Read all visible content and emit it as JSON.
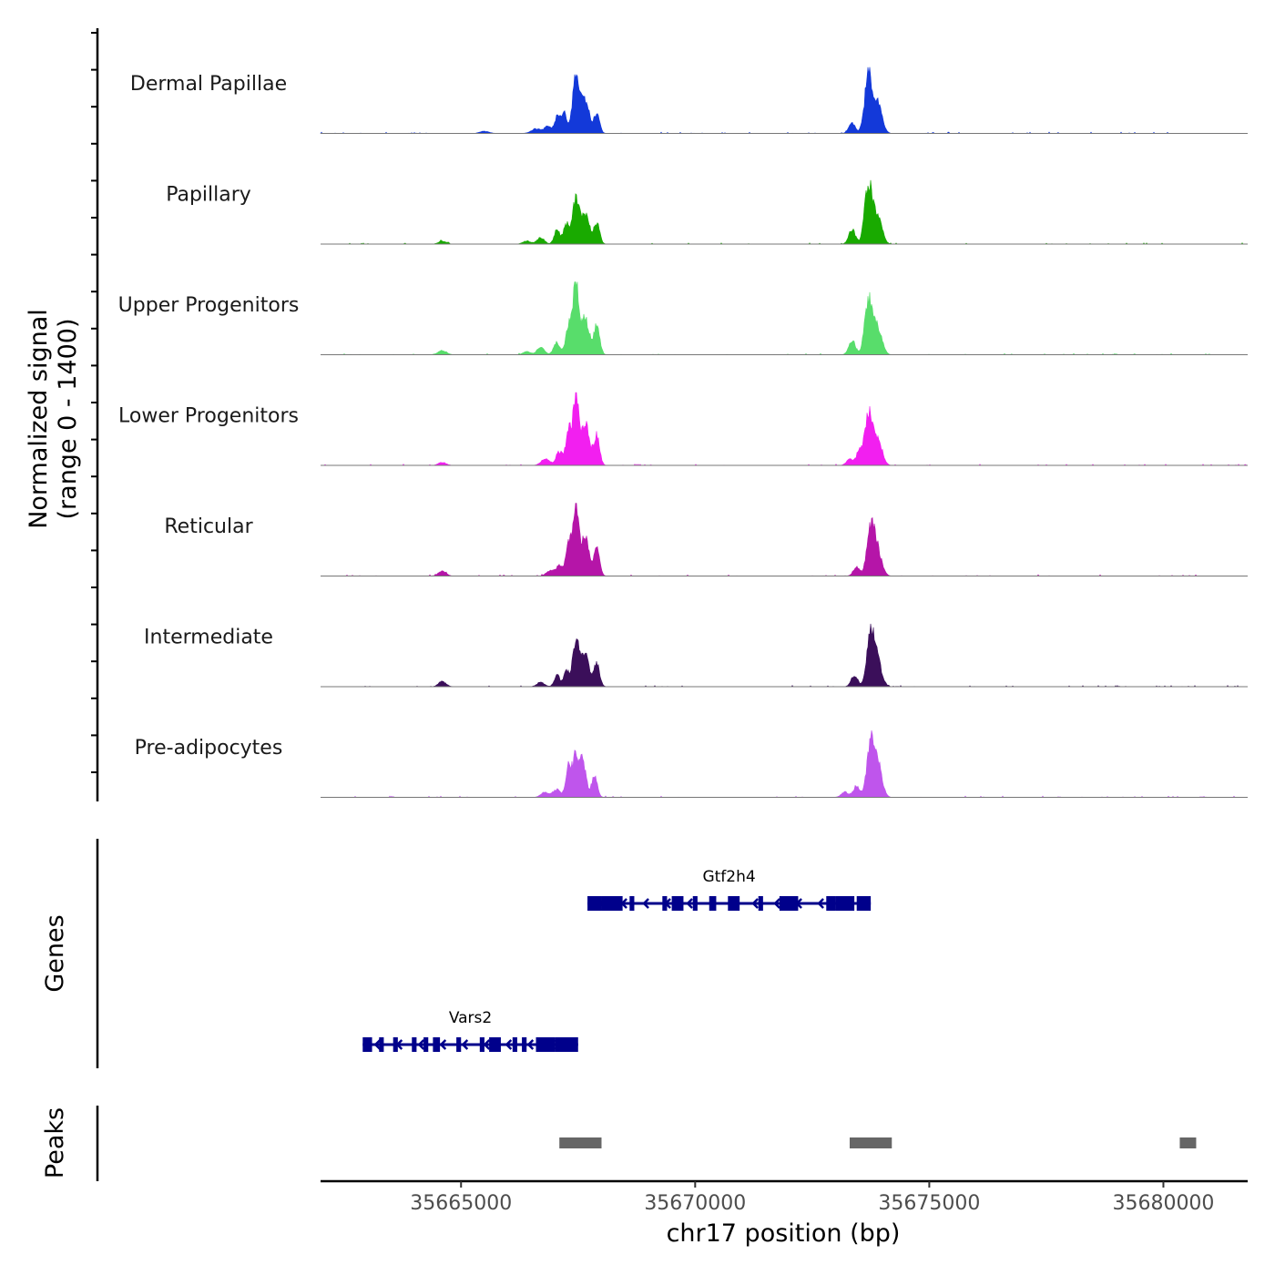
{
  "chart_data": {
    "type": "area",
    "xlabel": "chr17 position (bp)",
    "ylabel_signal": "Normalized signal",
    "ylabel_signal_range": "(range 0 - 1400)",
    "ylabel_genes": "Genes",
    "ylabel_peaks": "Peaks",
    "chromosome": "chr17",
    "xlim": [
      35662000,
      35681800
    ],
    "ylim": [
      0,
      1400
    ],
    "x_ticks": [
      35665000,
      35670000,
      35675000,
      35680000
    ],
    "x_tick_labels": [
      "35665000",
      "35670000",
      "35675000",
      "35680000"
    ],
    "tracks": [
      {
        "name": "Dermal Papillae",
        "color": "#1339d9",
        "peaks": [
          {
            "x": 35665500,
            "h": 40,
            "w": 100
          },
          {
            "x": 35666600,
            "h": 90,
            "w": 100
          },
          {
            "x": 35666850,
            "h": 150,
            "w": 70
          },
          {
            "x": 35667050,
            "h": 300,
            "w": 60
          },
          {
            "x": 35667200,
            "h": 380,
            "w": 60
          },
          {
            "x": 35667450,
            "h": 1050,
            "w": 70
          },
          {
            "x": 35667650,
            "h": 650,
            "w": 90
          },
          {
            "x": 35667900,
            "h": 350,
            "w": 60
          },
          {
            "x": 35673350,
            "h": 200,
            "w": 70
          },
          {
            "x": 35673700,
            "h": 1100,
            "w": 80
          },
          {
            "x": 35673900,
            "h": 550,
            "w": 90
          }
        ]
      },
      {
        "name": "Papillary",
        "color": "#19aa00",
        "peaks": [
          {
            "x": 35664600,
            "h": 60,
            "w": 80
          },
          {
            "x": 35666400,
            "h": 60,
            "w": 80
          },
          {
            "x": 35666700,
            "h": 120,
            "w": 80
          },
          {
            "x": 35667050,
            "h": 270,
            "w": 60
          },
          {
            "x": 35667250,
            "h": 380,
            "w": 60
          },
          {
            "x": 35667450,
            "h": 820,
            "w": 70
          },
          {
            "x": 35667650,
            "h": 580,
            "w": 90
          },
          {
            "x": 35667900,
            "h": 400,
            "w": 60
          },
          {
            "x": 35673350,
            "h": 280,
            "w": 70
          },
          {
            "x": 35673700,
            "h": 1150,
            "w": 80
          },
          {
            "x": 35673900,
            "h": 520,
            "w": 90
          }
        ]
      },
      {
        "name": "Upper Progenitors",
        "color": "#58dd6b",
        "peaks": [
          {
            "x": 35664600,
            "h": 80,
            "w": 90
          },
          {
            "x": 35666400,
            "h": 60,
            "w": 80
          },
          {
            "x": 35666700,
            "h": 140,
            "w": 80
          },
          {
            "x": 35667050,
            "h": 230,
            "w": 70
          },
          {
            "x": 35667300,
            "h": 550,
            "w": 60
          },
          {
            "x": 35667450,
            "h": 1380,
            "w": 60
          },
          {
            "x": 35667650,
            "h": 700,
            "w": 90
          },
          {
            "x": 35667900,
            "h": 560,
            "w": 60
          },
          {
            "x": 35673350,
            "h": 280,
            "w": 70
          },
          {
            "x": 35673700,
            "h": 1050,
            "w": 80
          },
          {
            "x": 35673900,
            "h": 520,
            "w": 90
          }
        ]
      },
      {
        "name": "Lower Progenitors",
        "color": "#f21ff0",
        "peaks": [
          {
            "x": 35664600,
            "h": 60,
            "w": 80
          },
          {
            "x": 35666800,
            "h": 120,
            "w": 90
          },
          {
            "x": 35667100,
            "h": 270,
            "w": 70
          },
          {
            "x": 35667300,
            "h": 650,
            "w": 60
          },
          {
            "x": 35667450,
            "h": 1300,
            "w": 60
          },
          {
            "x": 35667650,
            "h": 820,
            "w": 90
          },
          {
            "x": 35667900,
            "h": 580,
            "w": 60
          },
          {
            "x": 35673300,
            "h": 120,
            "w": 70
          },
          {
            "x": 35673500,
            "h": 250,
            "w": 60
          },
          {
            "x": 35673700,
            "h": 1000,
            "w": 80
          },
          {
            "x": 35673900,
            "h": 500,
            "w": 90
          }
        ]
      },
      {
        "name": "Reticular",
        "color": "#b515a8",
        "peaks": [
          {
            "x": 35664600,
            "h": 100,
            "w": 80
          },
          {
            "x": 35666900,
            "h": 100,
            "w": 80
          },
          {
            "x": 35667100,
            "h": 200,
            "w": 70
          },
          {
            "x": 35667300,
            "h": 600,
            "w": 60
          },
          {
            "x": 35667450,
            "h": 1250,
            "w": 60
          },
          {
            "x": 35667650,
            "h": 720,
            "w": 90
          },
          {
            "x": 35667900,
            "h": 500,
            "w": 60
          },
          {
            "x": 35673450,
            "h": 180,
            "w": 70
          },
          {
            "x": 35673750,
            "h": 900,
            "w": 80
          },
          {
            "x": 35673900,
            "h": 450,
            "w": 90
          }
        ]
      },
      {
        "name": "Intermediate",
        "color": "#3b0f5a",
        "peaks": [
          {
            "x": 35664600,
            "h": 100,
            "w": 80
          },
          {
            "x": 35666700,
            "h": 80,
            "w": 80
          },
          {
            "x": 35667050,
            "h": 220,
            "w": 60
          },
          {
            "x": 35667250,
            "h": 280,
            "w": 60
          },
          {
            "x": 35667450,
            "h": 850,
            "w": 70
          },
          {
            "x": 35667650,
            "h": 600,
            "w": 90
          },
          {
            "x": 35667900,
            "h": 450,
            "w": 60
          },
          {
            "x": 35673400,
            "h": 220,
            "w": 70
          },
          {
            "x": 35673750,
            "h": 1000,
            "w": 80
          },
          {
            "x": 35673900,
            "h": 450,
            "w": 90
          }
        ]
      },
      {
        "name": "Pre-adipocytes",
        "color": "#bf55ec",
        "peaks": [
          {
            "x": 35666800,
            "h": 100,
            "w": 90
          },
          {
            "x": 35667050,
            "h": 150,
            "w": 80
          },
          {
            "x": 35667300,
            "h": 600,
            "w": 60
          },
          {
            "x": 35667450,
            "h": 750,
            "w": 60
          },
          {
            "x": 35667600,
            "h": 700,
            "w": 70
          },
          {
            "x": 35667850,
            "h": 420,
            "w": 60
          },
          {
            "x": 35673200,
            "h": 100,
            "w": 80
          },
          {
            "x": 35673450,
            "h": 220,
            "w": 70
          },
          {
            "x": 35673750,
            "h": 1050,
            "w": 80
          },
          {
            "x": 35673900,
            "h": 600,
            "w": 90
          }
        ]
      }
    ],
    "genes": [
      {
        "name": "Vars2",
        "strand": "-",
        "start": 35662900,
        "end": 35667500,
        "exons": [
          [
            35662900,
            35663100
          ],
          [
            35663250,
            35663350
          ],
          [
            35663550,
            35663650
          ],
          [
            35663950,
            35664050
          ],
          [
            35664200,
            35664300
          ],
          [
            35664400,
            35664550
          ],
          [
            35664900,
            35665000
          ],
          [
            35665400,
            35665500
          ],
          [
            35665600,
            35665850
          ],
          [
            35666100,
            35666200
          ],
          [
            35666300,
            35666400
          ],
          [
            35666600,
            35667000
          ],
          [
            35667000,
            35667500
          ]
        ]
      },
      {
        "name": "Gtf2h4",
        "strand": "-",
        "start": 35667700,
        "end": 35673750,
        "exons": [
          [
            35667700,
            35668000
          ],
          [
            35668000,
            35668450
          ],
          [
            35668600,
            35668700
          ],
          [
            35669300,
            35669400
          ],
          [
            35669500,
            35669750
          ],
          [
            35669950,
            35670050
          ],
          [
            35670300,
            35670450
          ],
          [
            35670700,
            35670950
          ],
          [
            35671350,
            35671450
          ],
          [
            35671800,
            35672200
          ],
          [
            35672800,
            35673000
          ],
          [
            35673000,
            35673400
          ],
          [
            35673450,
            35673750
          ]
        ]
      }
    ],
    "peak_regions": [
      [
        35667100,
        35668000
      ],
      [
        35673300,
        35674200
      ],
      [
        35680350,
        35680700
      ]
    ],
    "peak_region_color": "#666666",
    "gene_color": "#00008b"
  }
}
